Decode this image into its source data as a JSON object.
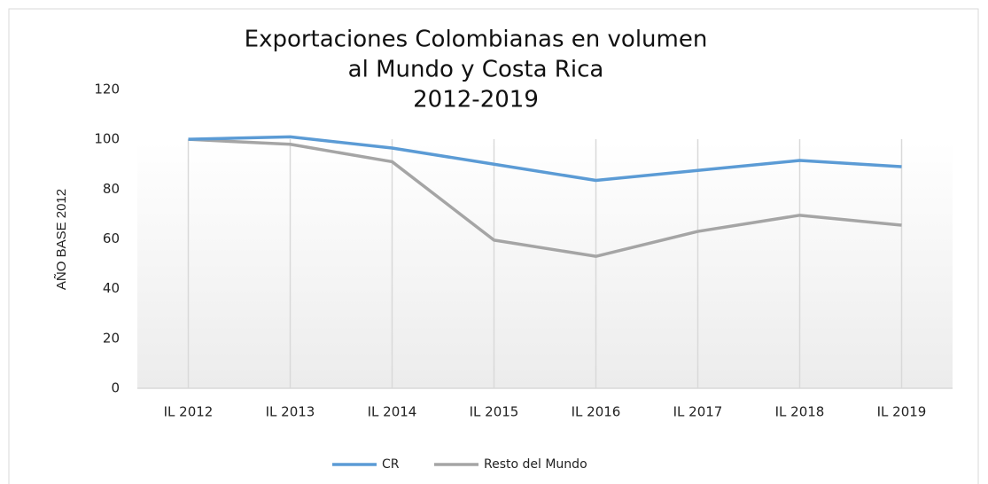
{
  "chart_data": {
    "type": "line",
    "title": [
      "Exportaciones Colombianas en volumen",
      "al Mundo y Costa Rica",
      "2012-2019"
    ],
    "y_label": "AÑO BASE 2012",
    "categories": [
      "IL 2012",
      "IL 2013",
      "IL 2014",
      "IL 2015",
      "IL 2016",
      "IL 2017",
      "IL 2018",
      "IL 2019"
    ],
    "series": [
      {
        "name": "CR",
        "color": "#5b9bd5",
        "values": [
          100,
          101,
          96.5,
          90,
          83.5,
          87.5,
          91.5,
          89
        ]
      },
      {
        "name": "Resto del Mundo",
        "color": "#a5a5a5",
        "values": [
          100,
          98,
          91,
          59.5,
          53,
          63,
          69.5,
          65.5
        ]
      }
    ],
    "ylim": [
      0,
      120
    ],
    "yticks": [
      0,
      20,
      40,
      60,
      80,
      100,
      120
    ],
    "ygrid": false,
    "xgrid": true,
    "legend": "bottom"
  }
}
